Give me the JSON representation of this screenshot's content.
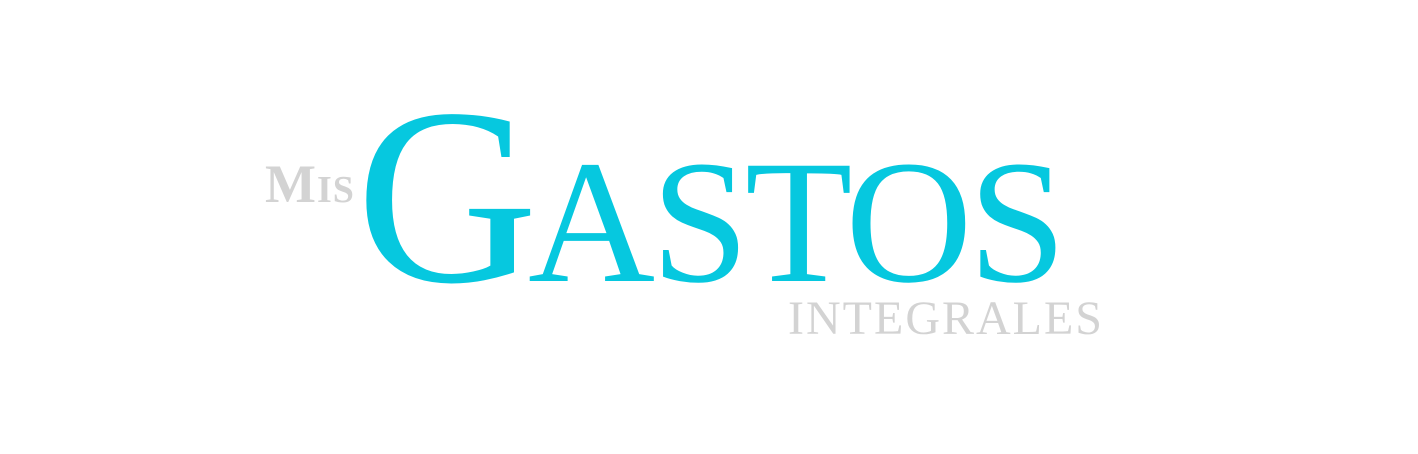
{
  "logo": {
    "word_small_prefix": "Mis",
    "word_main": "Gastos",
    "word_sub": "INTEGRALES"
  },
  "colors": {
    "background": "#ffffff",
    "primary": "#06c8df",
    "secondary": "#d3d3d3"
  }
}
